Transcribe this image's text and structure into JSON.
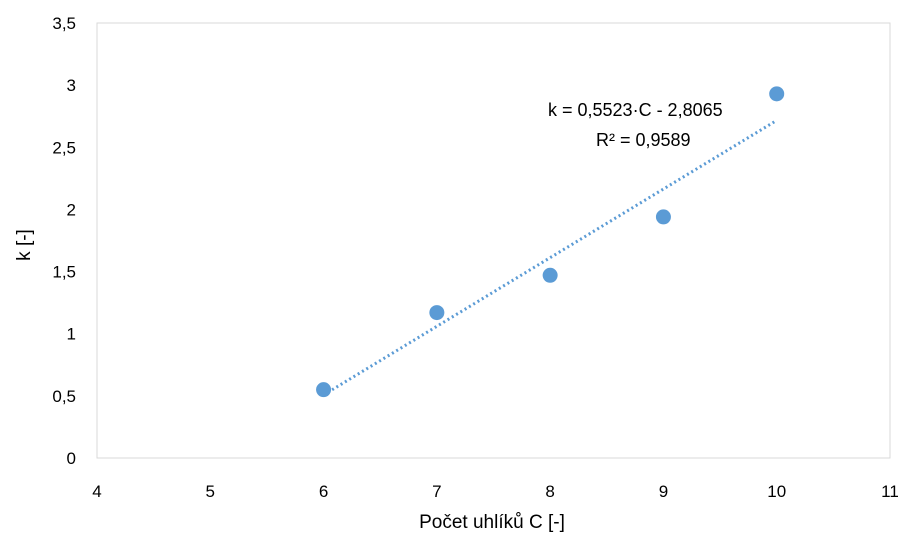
{
  "chart_data": {
    "type": "scatter",
    "title": "",
    "xlabel": "Počet uhlíků C [-]",
    "ylabel": "k [-]",
    "xlim": [
      4,
      11
    ],
    "ylim": [
      0,
      3.5
    ],
    "xticks": [
      "4",
      "5",
      "6",
      "7",
      "8",
      "9",
      "10",
      "11"
    ],
    "yticks": [
      "0",
      "0,5",
      "1",
      "1,5",
      "2",
      "2,5",
      "3",
      "3,5"
    ],
    "grid": false,
    "legend": "none",
    "marker_color": "#5b9bd5",
    "trendline_color": "#5b9bd5",
    "series": [
      {
        "x": [
          6,
          7,
          8,
          9,
          10
        ],
        "y": [
          0.55,
          1.17,
          1.47,
          1.94,
          2.93
        ]
      }
    ],
    "trendline": {
      "type": "linear",
      "slope": 0.5523,
      "intercept": -2.8065,
      "x_range": [
        6,
        10
      ],
      "equation": "k = 0,5523·C - 2,8065",
      "r_squared": "R² = 0,9589"
    }
  }
}
